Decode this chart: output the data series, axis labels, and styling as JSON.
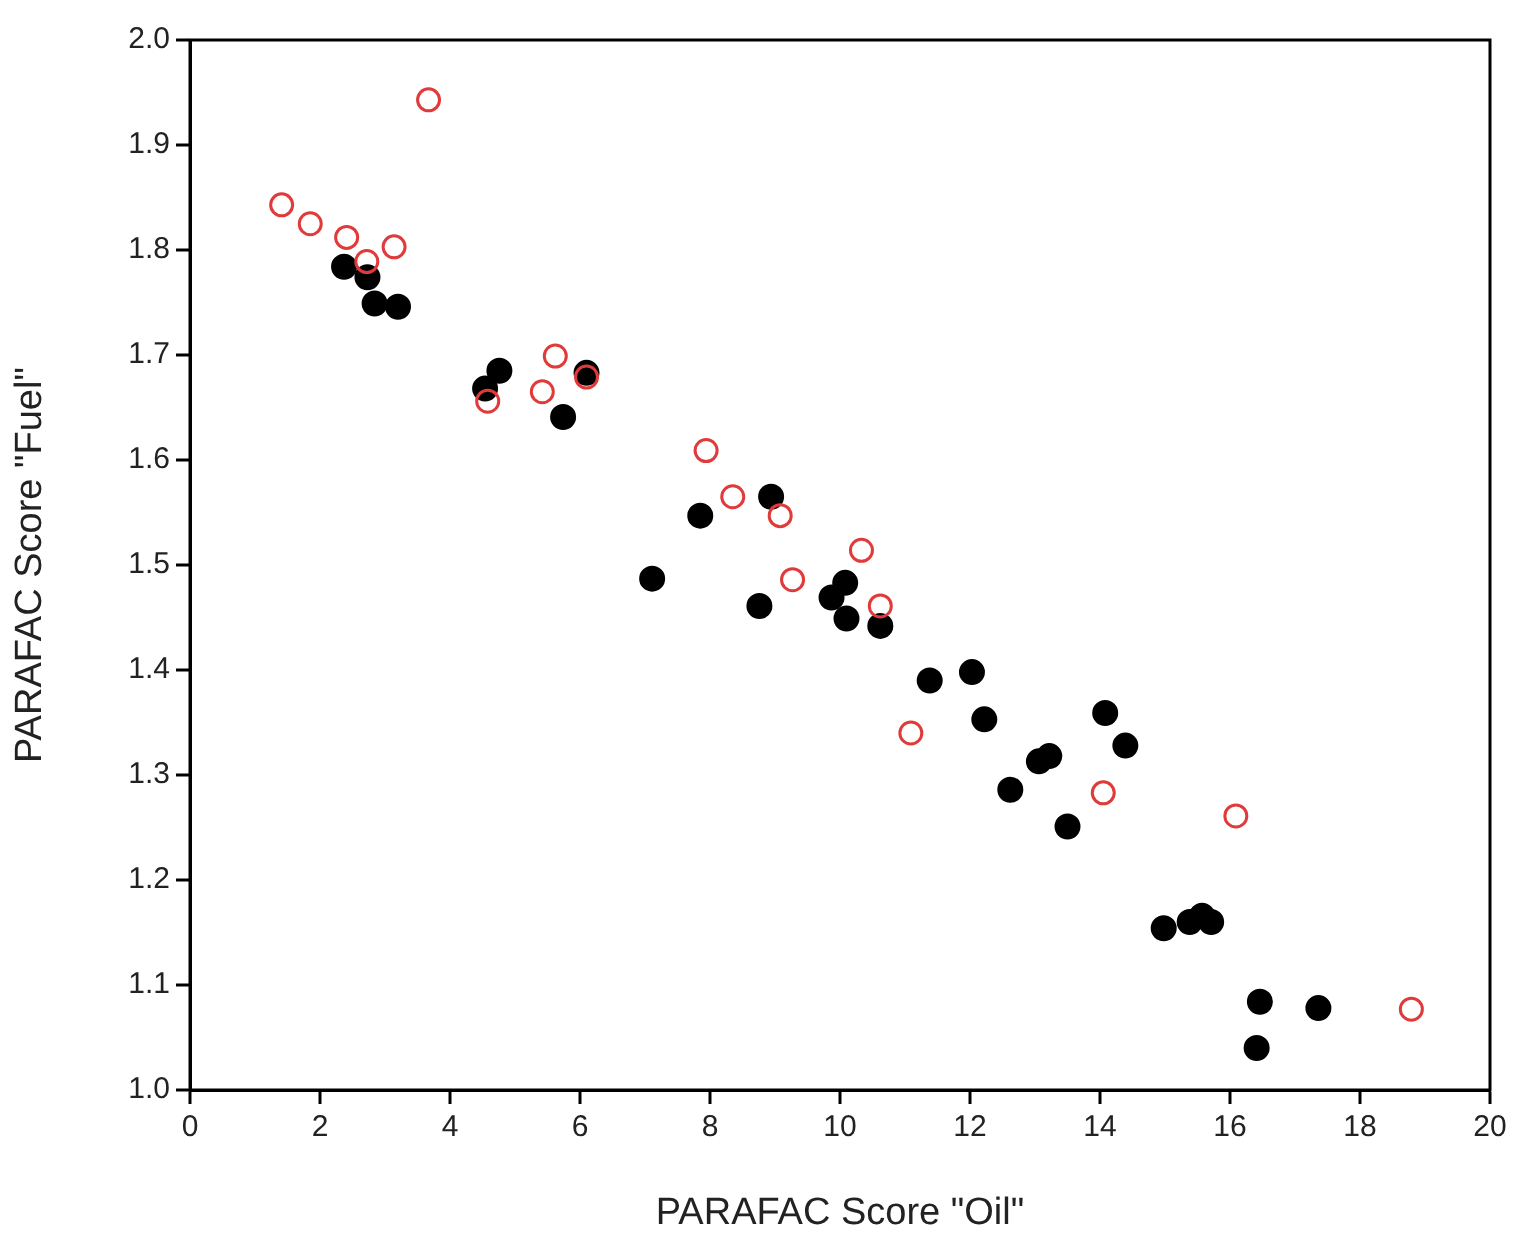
{
  "chart_data": {
    "type": "scatter",
    "xlabel": "PARAFAC Score \"Oil\"",
    "ylabel": "PARAFAC Score \"Fuel\"",
    "xlim": [
      0,
      20
    ],
    "ylim": [
      1.0,
      2.0
    ],
    "xticks": [
      0,
      2,
      4,
      6,
      8,
      10,
      12,
      14,
      16,
      18,
      20
    ],
    "yticks": [
      {
        "value": 1,
        "label": "1.0"
      },
      1.1,
      1.2,
      1.3,
      1.4,
      1.5,
      1.6,
      1.7,
      1.8,
      1.9,
      {
        "value": 2,
        "label": "2.0"
      }
    ],
    "grid": false,
    "legend": false,
    "marker": "circle",
    "series": [
      {
        "color": "#000000",
        "x": [
          2.37,
          2.73,
          2.84,
          3.2,
          4.54,
          4.76,
          6.1,
          5.74,
          7.11,
          7.85,
          8.94,
          8.76,
          10.08,
          9.87,
          10.1,
          10.62,
          11.38,
          12.03,
          12.22,
          14.08,
          14.39,
          13.06,
          13.22,
          12.62,
          13.5,
          14.98,
          15.38,
          15.57,
          15.71,
          16.46,
          17.36,
          16.41
        ],
        "values": [
          1.784,
          1.774,
          1.749,
          1.746,
          1.668,
          1.685,
          1.683,
          1.641,
          1.487,
          1.547,
          1.565,
          1.461,
          1.483,
          1.469,
          1.449,
          1.442,
          1.39,
          1.398,
          1.353,
          1.359,
          1.328,
          1.313,
          1.318,
          1.286,
          1.251,
          1.154,
          1.16,
          1.166,
          1.16,
          1.084,
          1.078,
          1.04
        ]
      },
      {
        "color": "#e03a3a",
        "x": [
          3.67,
          1.41,
          1.85,
          2.41,
          3.14,
          2.72,
          5.62,
          5.42,
          6.1,
          4.58,
          7.94,
          8.35,
          9.08,
          10.33,
          9.27,
          10.62,
          11.09,
          14.05,
          16.09,
          18.79
        ],
        "values": [
          1.943,
          1.843,
          1.825,
          1.812,
          1.803,
          1.789,
          1.699,
          1.665,
          1.679,
          1.656,
          1.609,
          1.565,
          1.547,
          1.514,
          1.486,
          1.461,
          1.34,
          1.283,
          1.261,
          1.077
        ]
      }
    ]
  }
}
